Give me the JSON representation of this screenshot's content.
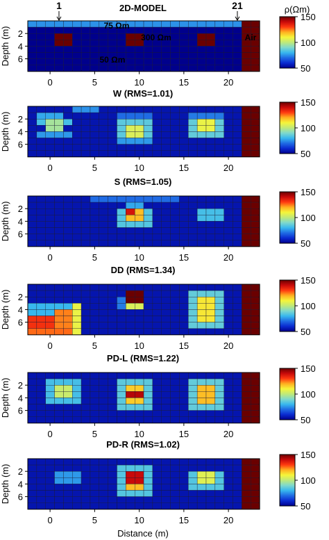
{
  "figure": {
    "marker_left": "1",
    "marker_right": "21",
    "xlabel": "Distance (m)",
    "ylabel": "Depth (m)",
    "colorbar_label": "ρ(Ωm)"
  },
  "colorbar": {
    "min": 50,
    "max": 150,
    "ticks": [
      "150",
      "100",
      "50"
    ],
    "colors": [
      "#00008c",
      "#0a2ad0",
      "#1f6be4",
      "#38b7ee",
      "#7fd9cc",
      "#bfe97a",
      "#f5f53a",
      "#ffb020",
      "#ff3a10",
      "#c80a0a",
      "#6a0000"
    ]
  },
  "chart_data": [
    {
      "type": "heatmap",
      "title": "2D-MODEL",
      "x_ticks": [
        "0",
        "5",
        "10",
        "15",
        "20"
      ],
      "y_ticks": [
        "2",
        "4",
        "6"
      ],
      "annotations": [
        "75 Ωm",
        "300 Ωm",
        "50 Ωm",
        "Air"
      ],
      "units": "Ωm",
      "grid": "columns -2..23 (26) × rows 1..8; rows 1 = top",
      "cells": [
        {
          "x0": -2,
          "x1": 21,
          "rows": [
            1,
            1
          ],
          "value": 75
        },
        {
          "x0": -2,
          "x1": 21,
          "rows": [
            2,
            8
          ],
          "value": 50
        },
        {
          "x0": 1,
          "x1": 2,
          "rows": [
            3,
            4
          ],
          "value": 300
        },
        {
          "x0": 9,
          "x1": 10,
          "rows": [
            3,
            4
          ],
          "value": 300
        },
        {
          "x0": 17,
          "x1": 18,
          "rows": [
            3,
            4
          ],
          "value": 300
        },
        {
          "x0": 22,
          "x1": 23,
          "rows": [
            1,
            8
          ],
          "value": 150
        }
      ]
    },
    {
      "type": "heatmap",
      "title": "W (RMS=1.01)",
      "x_ticks": [
        "0",
        "5",
        "10",
        "15",
        "20"
      ],
      "y_ticks": [
        "2",
        "4",
        "6"
      ],
      "background": 55,
      "cells": [
        {
          "x0": -1,
          "x1": 1,
          "rows": [
            2,
            2
          ],
          "value": 78
        },
        {
          "x0": -1,
          "x1": 2,
          "rows": [
            3,
            3
          ],
          "value": 82
        },
        {
          "x0": 0,
          "x1": 1,
          "rows": [
            3,
            4
          ],
          "value": 96
        },
        {
          "x0": -1,
          "x1": 2,
          "rows": [
            5,
            5
          ],
          "value": 76
        },
        {
          "x0": 3,
          "x1": 5,
          "rows": [
            1,
            1
          ],
          "value": 75
        },
        {
          "x0": 8,
          "x1": 11,
          "rows": [
            2,
            2
          ],
          "value": 70
        },
        {
          "x0": 8,
          "x1": 11,
          "rows": [
            3,
            5
          ],
          "value": 85
        },
        {
          "x0": 9,
          "x1": 10,
          "rows": [
            4,
            5
          ],
          "value": 105
        },
        {
          "x0": 8,
          "x1": 11,
          "rows": [
            6,
            6
          ],
          "value": 76
        },
        {
          "x0": 16,
          "x1": 19,
          "rows": [
            2,
            2
          ],
          "value": 72
        },
        {
          "x0": 16,
          "x1": 19,
          "rows": [
            3,
            5
          ],
          "value": 86
        },
        {
          "x0": 17,
          "x1": 18,
          "rows": [
            3,
            4
          ],
          "value": 108
        },
        {
          "x0": 22,
          "x1": 23,
          "rows": [
            1,
            8
          ],
          "value": 150
        }
      ]
    },
    {
      "type": "heatmap",
      "title": "S (RMS=1.05)",
      "x_ticks": [
        "0",
        "5",
        "10",
        "15",
        "20"
      ],
      "y_ticks": [
        "2",
        "4",
        "6"
      ],
      "background": 55,
      "cells": [
        {
          "x0": 5,
          "x1": 14,
          "rows": [
            1,
            1
          ],
          "value": 70
        },
        {
          "x0": 9,
          "x1": 10,
          "rows": [
            2,
            2
          ],
          "value": 78
        },
        {
          "x0": 8,
          "x1": 11,
          "rows": [
            3,
            5
          ],
          "value": 84
        },
        {
          "x0": 9,
          "x1": 10,
          "rows": [
            3,
            4
          ],
          "value": 118
        },
        {
          "x0": 9,
          "x1": 9,
          "rows": [
            3,
            3
          ],
          "value": 138
        },
        {
          "x0": 17,
          "x1": 19,
          "rows": [
            3,
            4
          ],
          "value": 82
        },
        {
          "x0": 22,
          "x1": 23,
          "rows": [
            1,
            8
          ],
          "value": 150
        }
      ]
    },
    {
      "type": "heatmap",
      "title": "DD (RMS=1.34)",
      "x_ticks": [
        "0",
        "5",
        "10",
        "15",
        "20"
      ],
      "y_ticks": [
        "2",
        "4",
        "6"
      ],
      "background": 55,
      "cells": [
        {
          "x0": -2,
          "x1": 3,
          "rows": [
            4,
            5
          ],
          "value": 80
        },
        {
          "x0": -2,
          "x1": 0,
          "rows": [
            6,
            7
          ],
          "value": 132
        },
        {
          "x0": -2,
          "x1": 2,
          "rows": [
            8,
            8
          ],
          "value": 126
        },
        {
          "x0": 1,
          "x1": 2,
          "rows": [
            5,
            7
          ],
          "value": 124
        },
        {
          "x0": 3,
          "x1": 3,
          "rows": [
            4,
            8
          ],
          "value": 108
        },
        {
          "x0": 9,
          "x1": 10,
          "rows": [
            2,
            3
          ],
          "value": 150
        },
        {
          "x0": 8,
          "x1": 8,
          "rows": [
            3,
            4
          ],
          "value": 72
        },
        {
          "x0": 9,
          "x1": 10,
          "rows": [
            4,
            4
          ],
          "value": 105
        },
        {
          "x0": 16,
          "x1": 19,
          "rows": [
            2,
            7
          ],
          "value": 86
        },
        {
          "x0": 17,
          "x1": 18,
          "rows": [
            3,
            6
          ],
          "value": 112
        },
        {
          "x0": 22,
          "x1": 23,
          "rows": [
            1,
            8
          ],
          "value": 150
        }
      ]
    },
    {
      "type": "heatmap",
      "title": "PD-L (RMS=1.22)",
      "x_ticks": [
        "0",
        "5",
        "10",
        "15",
        "20"
      ],
      "y_ticks": [
        "2",
        "4",
        "6"
      ],
      "background": 55,
      "cells": [
        {
          "x0": 0,
          "x1": 3,
          "rows": [
            2,
            5
          ],
          "value": 82
        },
        {
          "x0": 1,
          "x1": 2,
          "rows": [
            3,
            4
          ],
          "value": 102
        },
        {
          "x0": 8,
          "x1": 11,
          "rows": [
            2,
            6
          ],
          "value": 85
        },
        {
          "x0": 9,
          "x1": 10,
          "rows": [
            3,
            5
          ],
          "value": 116
        },
        {
          "x0": 9,
          "x1": 10,
          "rows": [
            4,
            4
          ],
          "value": 142
        },
        {
          "x0": 16,
          "x1": 19,
          "rows": [
            2,
            6
          ],
          "value": 86
        },
        {
          "x0": 17,
          "x1": 18,
          "rows": [
            3,
            5
          ],
          "value": 118
        },
        {
          "x0": 22,
          "x1": 23,
          "rows": [
            1,
            8
          ],
          "value": 150
        }
      ]
    },
    {
      "type": "heatmap",
      "title": "PD-R (RMS=1.02)",
      "x_ticks": [
        "0",
        "5",
        "10",
        "15",
        "20"
      ],
      "y_ticks": [
        "2",
        "4",
        "6"
      ],
      "background": 55,
      "cells": [
        {
          "x0": 1,
          "x1": 3,
          "rows": [
            3,
            4
          ],
          "value": 76
        },
        {
          "x0": 8,
          "x1": 11,
          "rows": [
            2,
            6
          ],
          "value": 84
        },
        {
          "x0": 9,
          "x1": 10,
          "rows": [
            3,
            5
          ],
          "value": 118
        },
        {
          "x0": 9,
          "x1": 10,
          "rows": [
            3,
            4
          ],
          "value": 140
        },
        {
          "x0": 16,
          "x1": 19,
          "rows": [
            3,
            5
          ],
          "value": 84
        },
        {
          "x0": 17,
          "x1": 18,
          "rows": [
            3,
            4
          ],
          "value": 106
        },
        {
          "x0": 22,
          "x1": 23,
          "rows": [
            1,
            8
          ],
          "value": 150
        }
      ]
    }
  ]
}
